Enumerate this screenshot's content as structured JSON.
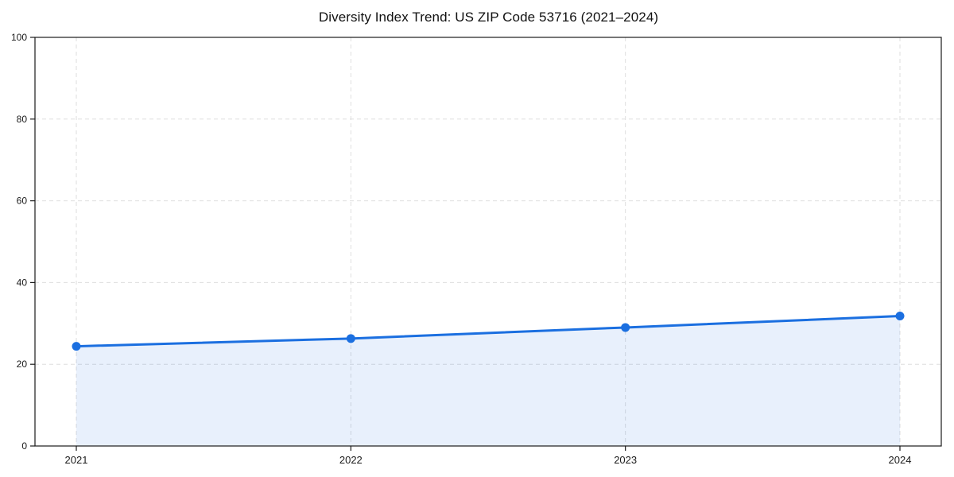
{
  "chart_data": {
    "type": "line",
    "title": "Diversity Index Trend: US ZIP Code 53716 (2021–2024)",
    "xlabel": "",
    "ylabel": "",
    "categories": [
      "2021",
      "2022",
      "2023",
      "2024"
    ],
    "series": [
      {
        "name": "Diversity Index",
        "values": [
          24.4,
          26.3,
          29.0,
          31.8
        ]
      }
    ],
    "ylim": [
      0,
      100
    ],
    "yticks": [
      0,
      20,
      40,
      60,
      80,
      100
    ],
    "grid": true,
    "grid_style": "dashed",
    "legend": false,
    "area_fill": true,
    "area_alpha": 0.1,
    "marker": "circle",
    "colors": {
      "line": "#1b6fe0",
      "marker": "#1b6fe0",
      "area": "#1b6fe0",
      "grid": "#dedede",
      "axis": "#1a1a1a",
      "tick_label": "#1a1a1a",
      "background": "#ffffff"
    }
  }
}
